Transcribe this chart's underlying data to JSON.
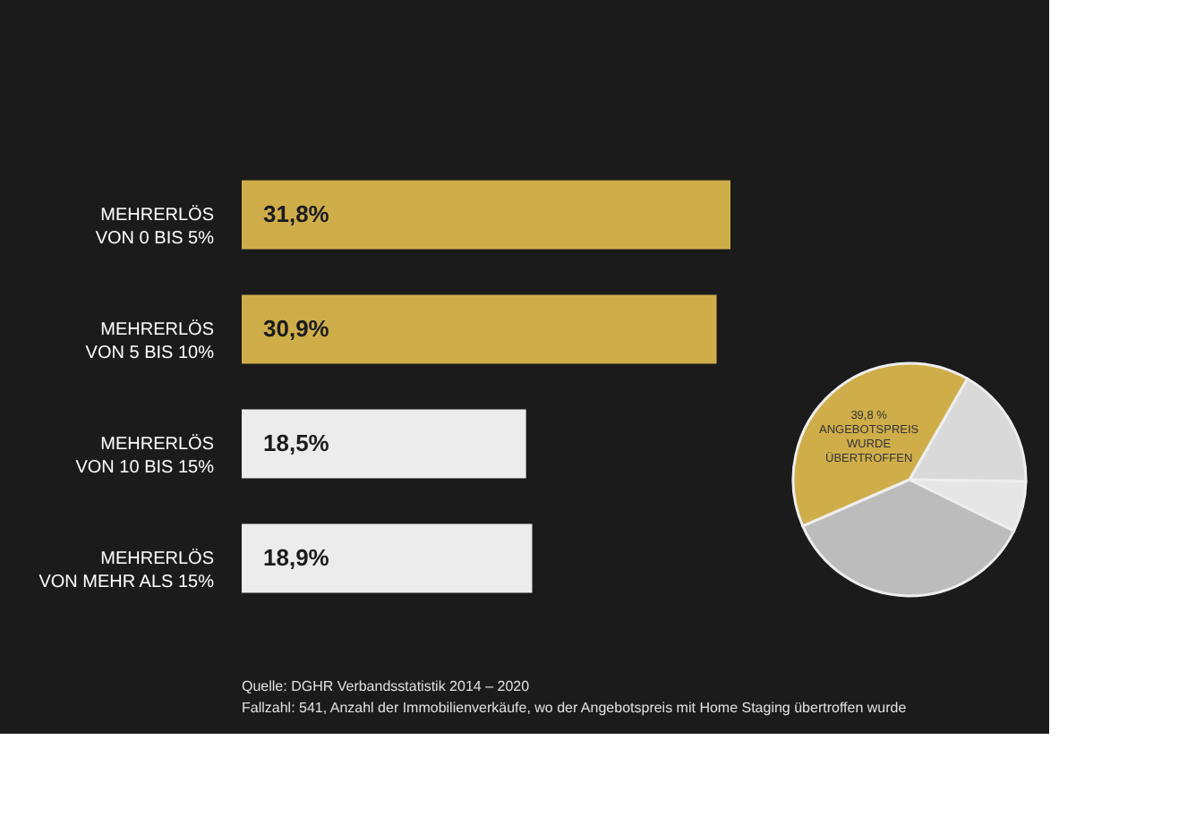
{
  "chart_data": [
    {
      "type": "bar",
      "orientation": "horizontal",
      "categories": [
        "MEHRERLÖS\nVON 0 BIS 5%",
        "MEHRERLÖS\nVON 5 BIS 10%",
        "MEHRERLÖS\nVON 10 BIS 15%",
        "MEHRERLÖS\nVON MEHR ALS 15%"
      ],
      "values": [
        31.8,
        30.9,
        18.5,
        18.9
      ],
      "colors": [
        "#cfae4a",
        "#cfae4a",
        "#ececec",
        "#ececec"
      ],
      "value_labels": [
        "31,8%",
        "30,9%",
        "18,5%",
        "18,9%"
      ],
      "annotations": [
        "Quelle: DGHR Verbandsstatistik 2014 – 2020",
        "Fallzahl: 541, Anzahl der Immobilienverkäufe, wo der Angebotspreis mit Home Staging übertroffen wurde"
      ]
    },
    {
      "type": "pie",
      "categories": [
        null,
        null,
        null,
        null
      ],
      "values": [
        17,
        7,
        36.2,
        39.8
      ],
      "colors": [
        "#d9d9d9",
        "#e6e6e6",
        "#bcbcbc",
        "#cfae4a"
      ],
      "value_labels": [
        null,
        null,
        null,
        "39,8 %"
      ],
      "annotations": [
        "ANGEBOTSPREIS WURDE ÜBERTROFFEN"
      ]
    }
  ]
}
